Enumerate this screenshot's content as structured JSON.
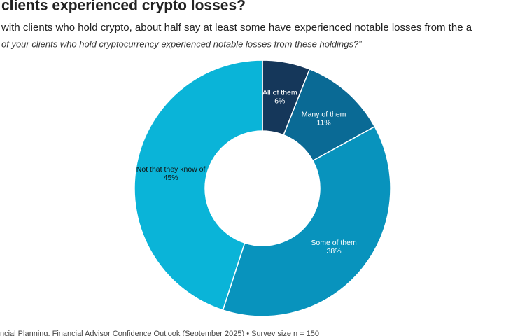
{
  "chart_data": {
    "type": "donut",
    "title": "clients experienced crypto losses?",
    "subtitle": "with clients who hold crypto, about half say at least some have experienced notable losses from the a",
    "question": "of your clients who hold cryptocurrency experienced notable losses from these holdings?”",
    "source": "ncial Planning, Financial Advisor Confidence Outlook (September 2025) • Survey size n = 150",
    "categories": [
      "All of them",
      "Many of them",
      "Some of them",
      "Not that they know of"
    ],
    "values": [
      6,
      11,
      38,
      45
    ],
    "value_labels": [
      "6%",
      "11%",
      "38%",
      "45%"
    ],
    "colors": [
      "#15375a",
      "#0a6a95",
      "#0893bd",
      "#0ab4d8"
    ]
  }
}
